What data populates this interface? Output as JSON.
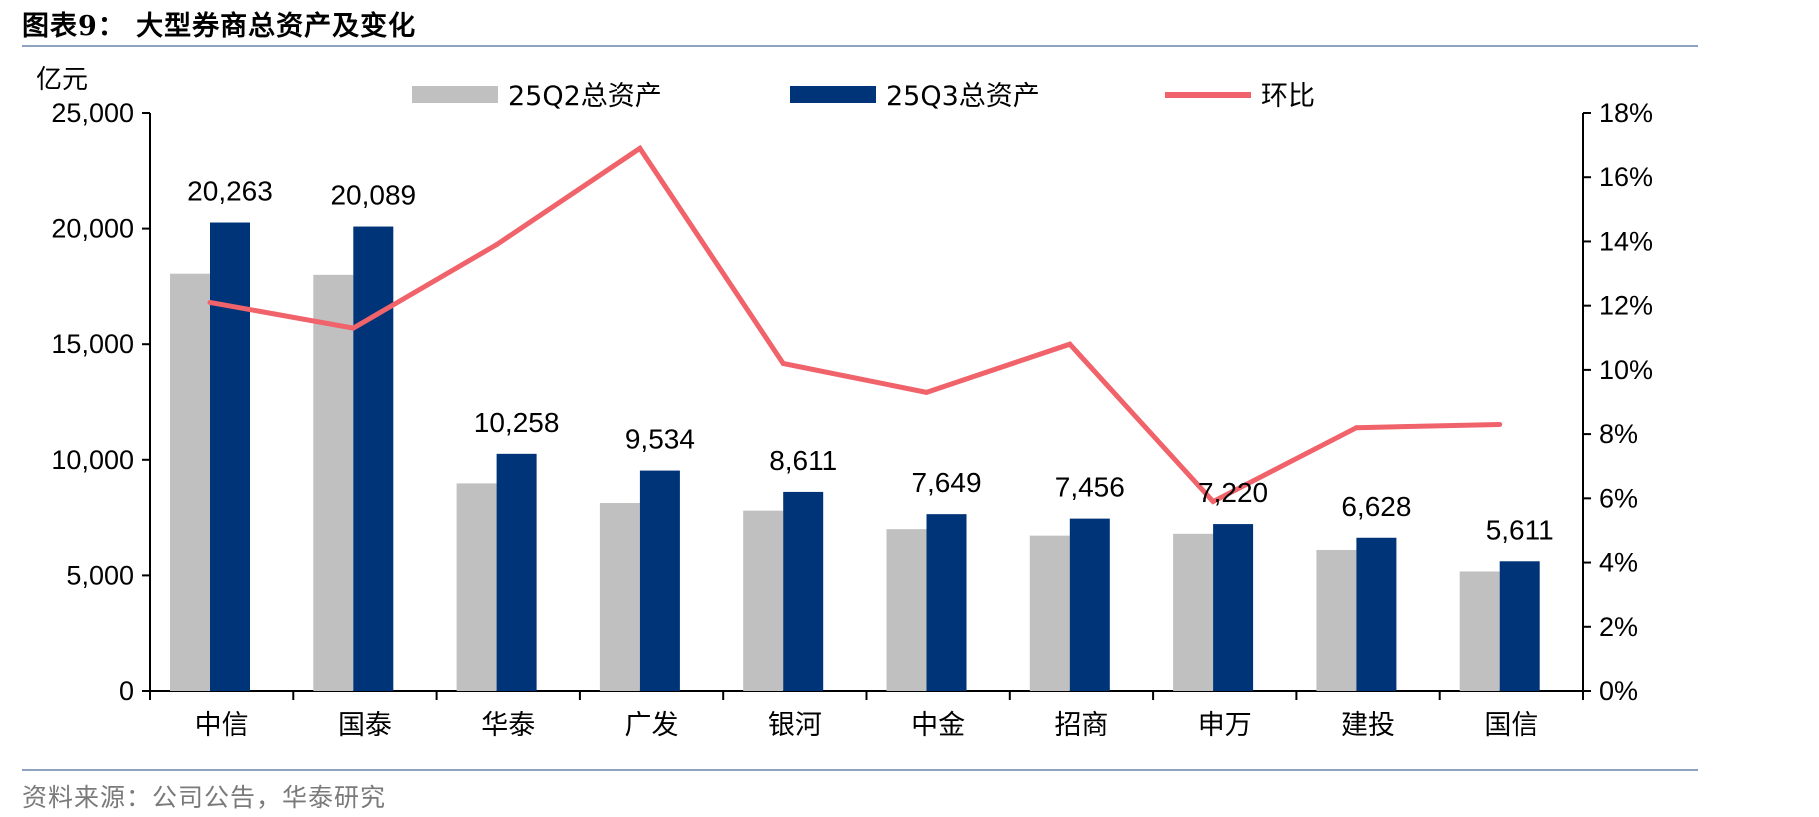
{
  "figure": {
    "title": "图表9：  大型券商总资产及变化",
    "source": "资料来源：公司公告，华泰研究"
  },
  "chart_data": {
    "type": "bar",
    "categories": [
      "中信",
      "国泰",
      "华泰",
      "广发",
      "银河",
      "中金",
      "招商",
      "申万",
      "建投",
      "国信"
    ],
    "series": [
      {
        "name": "25Q2总资产",
        "type": "bar",
        "axis": "left",
        "color": "#c0c0c0",
        "values": [
          18050,
          18000,
          8980,
          8130,
          7800,
          7000,
          6720,
          6800,
          6100,
          5170
        ]
      },
      {
        "name": "25Q3总资产",
        "type": "bar",
        "axis": "left",
        "color": "#003478",
        "values": [
          20263,
          20089,
          10258,
          9534,
          8611,
          7649,
          7456,
          7220,
          6628,
          5611
        ],
        "data_labels": [
          "20,263",
          "20,089",
          "10,258",
          "9,534",
          "8,611",
          "7,649",
          "7,456",
          "7,220",
          "6,628",
          "5,611"
        ]
      },
      {
        "name": "环比",
        "type": "line",
        "axis": "right",
        "color": "#f0636a",
        "values": [
          12.1,
          11.3,
          13.9,
          16.9,
          10.2,
          9.3,
          10.8,
          5.9,
          8.2,
          8.3
        ]
      }
    ],
    "y_left": {
      "unit": "亿元",
      "ylim": [
        0,
        25000
      ],
      "ticks": [
        "0",
        "5,000",
        "10,000",
        "15,000",
        "20,000",
        "25,000"
      ]
    },
    "y_right": {
      "ylim": [
        0,
        18
      ],
      "ticks": [
        "0%",
        "2%",
        "4%",
        "6%",
        "8%",
        "10%",
        "12%",
        "14%",
        "16%",
        "18%"
      ]
    },
    "legend": "top",
    "grid": false
  }
}
